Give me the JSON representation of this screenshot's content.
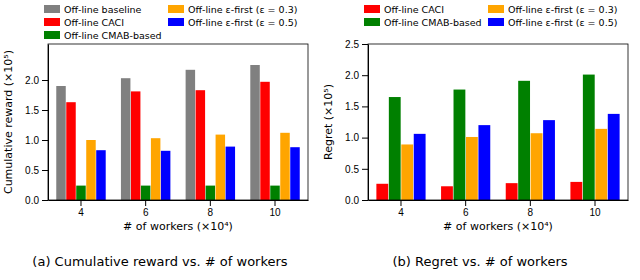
{
  "chart_data": [
    {
      "type": "bar",
      "title": "(a) Cumulative reward vs. # of workers",
      "x_label": "# of workers (×10⁴)",
      "y_label": "Cumulative reward (×10⁵)",
      "categories": [
        "4",
        "6",
        "8",
        "10"
      ],
      "series": [
        {
          "name": "Off-line baseline",
          "color": "#808080",
          "values": [
            1.9,
            2.03,
            2.17,
            2.25
          ]
        },
        {
          "name": "Off-line CACI",
          "color": "#ff0000",
          "values": [
            1.63,
            1.81,
            1.83,
            1.97
          ]
        },
        {
          "name": "Off-line CMAB-based",
          "color": "#008000",
          "values": [
            0.24,
            0.24,
            0.24,
            0.24
          ]
        },
        {
          "name": "Off-line ε-first (ε = 0.3)",
          "color": "#ffa500",
          "values": [
            1.0,
            1.03,
            1.09,
            1.12
          ]
        },
        {
          "name": "Off-line ε-first (ε = 0.5)",
          "color": "#0000ff",
          "values": [
            0.83,
            0.82,
            0.89,
            0.88
          ]
        }
      ],
      "ylim": [
        0,
        2.6
      ],
      "yticks": [
        {
          "value": 0,
          "label": "0.0"
        },
        {
          "value": 0.5,
          "label": "0.5"
        },
        {
          "value": 1,
          "label": "1.0"
        },
        {
          "value": 1.5,
          "label": "1.5"
        },
        {
          "value": 2,
          "label": "2.0"
        }
      ],
      "grid": false,
      "legend": "top"
    },
    {
      "type": "bar",
      "title": "(b) Regret vs. # of workers",
      "x_label": "# of workers (×10⁴)",
      "y_label": "Regret (×10⁵)",
      "categories": [
        "4",
        "6",
        "8",
        "10"
      ],
      "series": [
        {
          "name": "Off-line CACI",
          "color": "#ff0000",
          "values": [
            0.26,
            0.22,
            0.27,
            0.29
          ]
        },
        {
          "name": "Off-line CMAB-based",
          "color": "#008000",
          "values": [
            1.65,
            1.77,
            1.91,
            2.01
          ]
        },
        {
          "name": "Off-line ε-first (ε = 0.3)",
          "color": "#ffa500",
          "values": [
            0.89,
            1.01,
            1.07,
            1.14
          ]
        },
        {
          "name": "Off-line ε-first (ε = 0.5)",
          "color": "#0000ff",
          "values": [
            1.06,
            1.2,
            1.28,
            1.38
          ]
        }
      ],
      "ylim": [
        0,
        2.5
      ],
      "yticks": [
        {
          "value": 0,
          "label": "0.0"
        },
        {
          "value": 0.5,
          "label": "0.5"
        },
        {
          "value": 1,
          "label": "1.0"
        },
        {
          "value": 1.5,
          "label": "1.5"
        },
        {
          "value": 2,
          "label": "2.0"
        },
        {
          "value": 2.5,
          "label": "2.5"
        }
      ],
      "grid": false,
      "legend": "top"
    }
  ]
}
